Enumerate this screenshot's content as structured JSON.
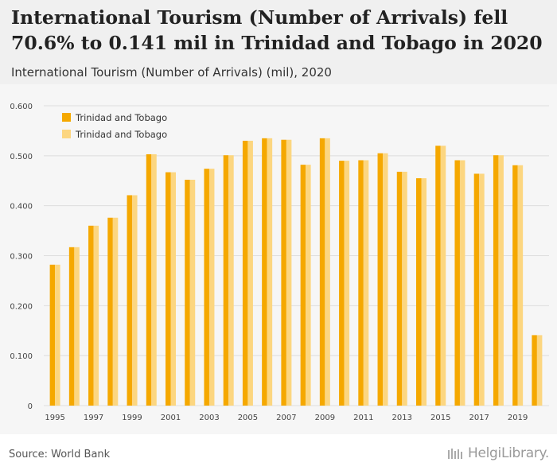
{
  "header": {
    "title": "International Tourism (Number of Arrivals) fell 70.6% to 0.141 mil in Trinidad and Tobago in 2020",
    "subtitle": "International Tourism (Number of Arrivals) (mil), 2020"
  },
  "footer": {
    "source": "Source: World Bank",
    "brand": "HelgiLibrary."
  },
  "colors": {
    "series1": "#f5a800",
    "series2": "#fcd680",
    "grid": "#dddddd",
    "header_bg": "#f0f0f0",
    "plot_bg": "#f6f6f6"
  },
  "chart_data": {
    "type": "bar",
    "title": "International Tourism (Number of Arrivals) (mil), 2020",
    "xlabel": "",
    "ylabel": "",
    "ylim": [
      0,
      0.6
    ],
    "yticks": [
      "0",
      "0.100",
      "0.200",
      "0.300",
      "0.400",
      "0.500",
      "0.600"
    ],
    "ytick_values": [
      0,
      0.1,
      0.2,
      0.3,
      0.4,
      0.5,
      0.6
    ],
    "categories": [
      1995,
      1996,
      1997,
      1998,
      1999,
      2000,
      2001,
      2002,
      2003,
      2004,
      2005,
      2006,
      2007,
      2008,
      2009,
      2010,
      2011,
      2012,
      2013,
      2014,
      2015,
      2016,
      2017,
      2018,
      2019,
      2020
    ],
    "xtick_labels": [
      "1995",
      "1997",
      "1999",
      "2001",
      "2003",
      "2005",
      "2007",
      "2009",
      "2011",
      "2013",
      "2015",
      "2017",
      "2019"
    ],
    "legend_position": "top-left",
    "grid": true,
    "series": [
      {
        "name": "Trinidad and Tobago",
        "values": [
          0.282,
          0.317,
          0.36,
          0.376,
          0.421,
          0.503,
          0.467,
          0.452,
          0.474,
          0.501,
          0.53,
          0.535,
          0.532,
          0.482,
          0.535,
          0.49,
          0.491,
          0.505,
          0.468,
          0.455,
          0.52,
          0.491,
          0.464,
          0.501,
          0.481,
          0.141
        ]
      },
      {
        "name": "Trinidad and Tobago",
        "values": [
          0.282,
          0.317,
          0.36,
          0.376,
          0.421,
          0.503,
          0.467,
          0.452,
          0.474,
          0.501,
          0.53,
          0.535,
          0.532,
          0.482,
          0.535,
          0.49,
          0.491,
          0.505,
          0.468,
          0.455,
          0.52,
          0.491,
          0.464,
          0.501,
          0.481,
          0.141
        ]
      }
    ]
  }
}
